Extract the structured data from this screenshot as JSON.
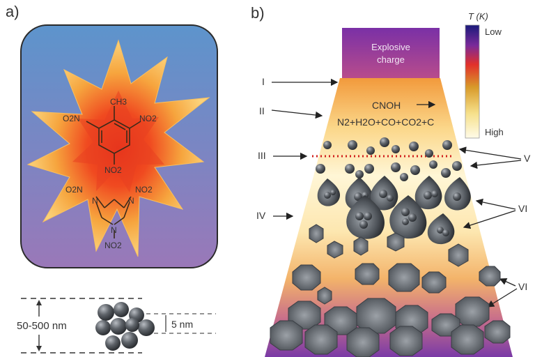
{
  "panel_a": {
    "label": "a)",
    "chem": {
      "ch3": "CH3",
      "o2n_left": "O2N",
      "no2_right": "NO2",
      "no2_bottom": "NO2",
      "o2n_ring_left": "O2N",
      "no2_ring_right": "NO2",
      "no2_ring_bottom": "NO2",
      "n_left": "N",
      "n_right": "N",
      "n_bottom": "N"
    },
    "scale_large": "50-500 nm",
    "scale_small": "5 nm"
  },
  "panel_b": {
    "label": "b)",
    "charge": [
      "Explosive",
      "charge"
    ],
    "temp_title": "T (K)",
    "temp_low": "Low",
    "temp_high": "High",
    "roman": {
      "I": "I",
      "II": "II",
      "III": "III",
      "IV": "IV",
      "V": "V",
      "VI_a": "VI",
      "VI_b": "VI"
    },
    "cnoh": "CNOH",
    "products": "N2+H2O+CO+CO2+C"
  },
  "colors": {
    "bg_top": "#5b8fc9",
    "bg_bottom": "#8a74b8",
    "flame_outer": "#f6b24a",
    "flame_inner": "#e8301c",
    "charge_top": "#7a2fa0",
    "charge_bottom": "#b04a90",
    "particle": "#555a60",
    "dotted_line": "#d0201c"
  }
}
